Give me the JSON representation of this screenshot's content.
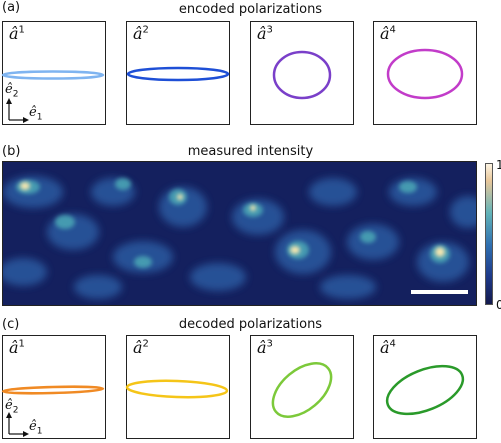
{
  "panel_a": {
    "label": "(a)",
    "title": "encoded polarizations",
    "boxes": [
      {
        "name": "â",
        "sup": "1",
        "color": "#7fb4f0"
      },
      {
        "name": "â",
        "sup": "2",
        "color": "#1e4fd6"
      },
      {
        "name": "â",
        "sup": "3",
        "color": "#7a3fc9"
      },
      {
        "name": "â",
        "sup": "4",
        "color": "#c23cc9"
      }
    ],
    "axes": {
      "e2": "ê",
      "e2_sub": "2",
      "e1": "ê",
      "e1_sub": "1"
    }
  },
  "panel_b": {
    "label": "(b)",
    "title": "measured intensity",
    "colorbar_max": "1",
    "colorbar_min": "0"
  },
  "panel_c": {
    "label": "(c)",
    "title": "decoded polarizations",
    "boxes": [
      {
        "name": "â",
        "sup": "1",
        "color": "#f08a24"
      },
      {
        "name": "â",
        "sup": "2",
        "color": "#f5c518"
      },
      {
        "name": "â",
        "sup": "3",
        "color": "#7cc93a"
      },
      {
        "name": "â",
        "sup": "4",
        "color": "#2a9a2a"
      }
    ],
    "axes": {
      "e2": "ê",
      "e2_sub": "2",
      "e1": "ê",
      "e1_sub": "1"
    }
  }
}
